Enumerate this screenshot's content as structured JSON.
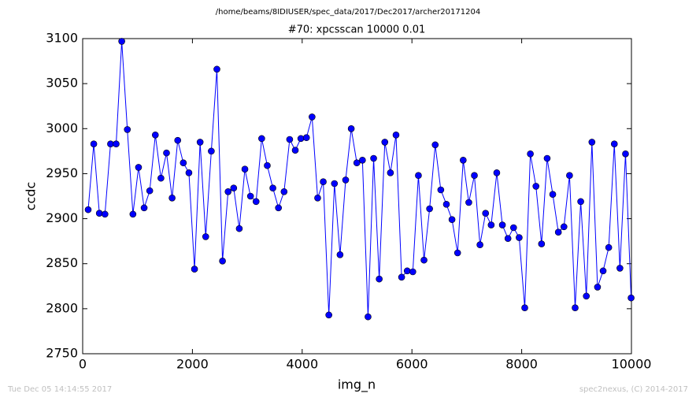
{
  "chart_data": {
    "type": "line",
    "title": "/home/beams/8IDIUSER/spec_data/2017/Dec2017/archer20171204",
    "subtitle": "#70: xpcsscan 10000 0.01",
    "x_label": "img_n",
    "y_label": "ccdc",
    "footer_left": "Tue Dec 05 14:14:55 2017",
    "footer_right": "spec2nexus, (C) 2014-2017",
    "x": [
      100,
      202,
      304,
      406,
      508,
      610,
      712,
      814,
      916,
      1018,
      1120,
      1222,
      1324,
      1426,
      1528,
      1630,
      1732,
      1834,
      1936,
      2038,
      2140,
      2242,
      2344,
      2446,
      2548,
      2650,
      2752,
      2854,
      2956,
      3058,
      3160,
      3262,
      3364,
      3466,
      3568,
      3670,
      3772,
      3874,
      3976,
      4078,
      4180,
      4282,
      4384,
      4486,
      4588,
      4690,
      4792,
      4894,
      4996,
      5098,
      5200,
      5302,
      5404,
      5506,
      5608,
      5710,
      5812,
      5914,
      6016,
      6118,
      6220,
      6322,
      6424,
      6526,
      6628,
      6730,
      6832,
      6934,
      7036,
      7138,
      7240,
      7342,
      7444,
      7546,
      7648,
      7750,
      7852,
      7954,
      8056,
      8158,
      8260,
      8362,
      8464,
      8566,
      8668,
      8770,
      8872,
      8974,
      9076,
      9178,
      9280,
      9382,
      9484,
      9586,
      9688,
      9790,
      9892,
      9994
    ],
    "series": [
      {
        "color": "#0000ff",
        "values": [
          2910,
          2983,
          2906,
          2905,
          2983,
          2983,
          3097,
          2999,
          2905,
          2957,
          2912,
          2931,
          2993,
          2945,
          2973,
          2923,
          2987,
          2962,
          2951,
          2844,
          2985,
          2880,
          2975,
          3066,
          2853,
          2930,
          2934,
          2889,
          2955,
          2925,
          2919,
          2989,
          2959,
          2934,
          2912,
          2930,
          2988,
          2976,
          2989,
          2990,
          3013,
          2923,
          2941,
          2793,
          2939,
          2860,
          2943,
          3000,
          2962,
          2965,
          2791,
          2967,
          2833,
          2985,
          2951,
          2993,
          2835,
          2842,
          2841,
          2948,
          2854,
          2911,
          2982,
          2932,
          2916,
          2899,
          2862,
          2965,
          2918,
          2948,
          2871,
          2906,
          2893,
          2951,
          2893,
          2878,
          2890,
          2879,
          2801,
          2972,
          2936,
          2872,
          2967,
          2927,
          2885,
          2891,
          2948,
          2801,
          2919,
          2814,
          2985,
          2824,
          2842,
          2868,
          2983,
          2845,
          2972,
          2812
        ]
      }
    ],
    "xlim": [
      0,
      10000
    ],
    "xticks": [
      0,
      2000,
      4000,
      6000,
      8000,
      10000
    ],
    "ylim": [
      2750,
      3100
    ],
    "yticks": [
      2750,
      2800,
      2850,
      2900,
      2950,
      3000,
      3050,
      3100
    ],
    "grid": false
  }
}
